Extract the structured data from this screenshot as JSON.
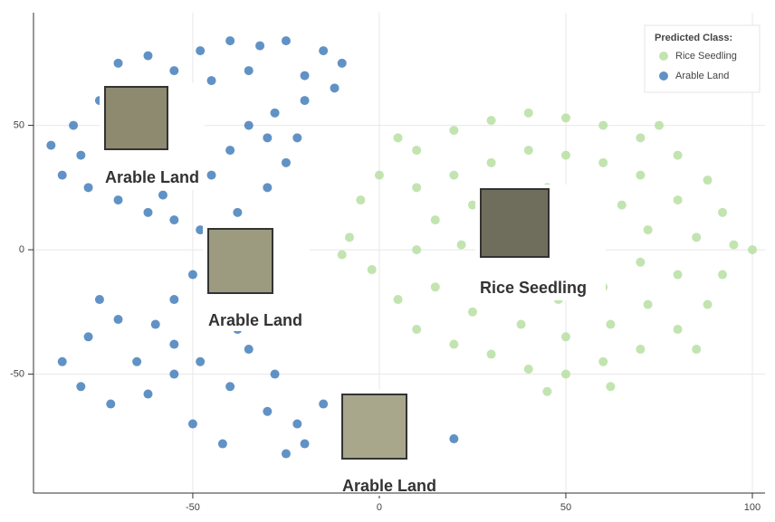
{
  "chart_data": {
    "type": "scatter",
    "xlim": [
      -92.7,
      103.4
    ],
    "ylim": [
      -97.8,
      95.3
    ],
    "xticks": [
      -50,
      0,
      50,
      100
    ],
    "yticks": [
      -50,
      0,
      50
    ],
    "grid": true,
    "legend_title": "Predicted Class:",
    "legend_position": "upper right",
    "series": [
      {
        "name": "Rice Seedling",
        "color": "#b3dd9c",
        "x": [
          0,
          10,
          20,
          30,
          40,
          50,
          60,
          70,
          80,
          88,
          92,
          95,
          92,
          88,
          80,
          70,
          60,
          50,
          40,
          30,
          20,
          10,
          5,
          -2,
          -8,
          -5,
          10,
          20,
          30,
          40,
          50,
          60,
          70,
          80,
          85,
          80,
          72,
          62,
          50,
          38,
          25,
          15,
          10,
          15,
          25,
          35,
          45,
          55,
          65,
          72,
          70,
          60,
          48,
          38,
          28,
          22,
          30,
          40,
          50,
          58,
          52,
          42,
          62,
          45,
          85,
          100,
          -10,
          5,
          75
        ],
        "y": [
          30,
          40,
          48,
          52,
          55,
          53,
          50,
          45,
          38,
          28,
          15,
          2,
          -10,
          -22,
          -32,
          -40,
          -45,
          -50,
          -48,
          -42,
          -38,
          -32,
          -20,
          -8,
          5,
          20,
          25,
          30,
          35,
          40,
          38,
          35,
          30,
          20,
          5,
          -10,
          -22,
          -30,
          -35,
          -30,
          -25,
          -15,
          0,
          12,
          18,
          22,
          25,
          22,
          18,
          8,
          -5,
          -15,
          -20,
          -15,
          -8,
          2,
          8,
          10,
          8,
          0,
          -8,
          -3,
          -55,
          -57,
          -40,
          0,
          -2,
          45,
          50
        ]
      },
      {
        "name": "Arable Land",
        "color": "#3a77b6",
        "x": [
          -70,
          -62,
          -55,
          -48,
          -40,
          -32,
          -25,
          -15,
          -10,
          -20,
          -35,
          -45,
          -58,
          -75,
          -82,
          -88,
          -85,
          -78,
          -70,
          -62,
          -55,
          -48,
          -42,
          -38,
          -30,
          -25,
          -22,
          -28,
          -35,
          -40,
          -45,
          -52,
          -20,
          -12,
          -30,
          -65,
          -58,
          -80,
          -50,
          -42,
          -35,
          -45,
          -60,
          -70,
          -78,
          -85,
          -80,
          -72,
          -62,
          -55,
          -48,
          -40,
          -30,
          -22,
          -15,
          -28,
          -35,
          -20,
          -10,
          0,
          10,
          20,
          -50,
          -42,
          -25,
          -65,
          -38,
          -55,
          -10,
          -5,
          -75,
          -55
        ],
        "y": [
          75,
          78,
          72,
          80,
          84,
          82,
          84,
          80,
          75,
          70,
          72,
          68,
          65,
          60,
          50,
          42,
          30,
          25,
          20,
          15,
          12,
          8,
          5,
          15,
          25,
          35,
          45,
          55,
          50,
          40,
          30,
          35,
          60,
          65,
          45,
          30,
          22,
          38,
          -10,
          -15,
          -25,
          -30,
          -30,
          -28,
          -35,
          -45,
          -55,
          -62,
          -58,
          -50,
          -45,
          -55,
          -65,
          -70,
          -62,
          -50,
          -40,
          -78,
          -80,
          -72,
          -78,
          -76,
          -70,
          -78,
          -82,
          -45,
          -32,
          -38,
          -92,
          -60,
          -20,
          -20
        ]
      }
    ],
    "annotations": [
      "Arable Land",
      "Arable Land",
      "Arable Land",
      "Rice Seedling"
    ]
  }
}
